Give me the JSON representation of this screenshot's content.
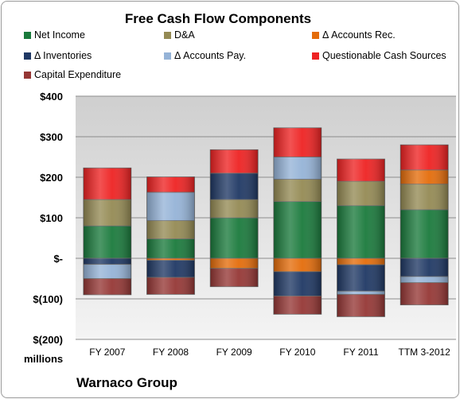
{
  "chart_data": {
    "type": "bar",
    "stacked": true,
    "title": "Free Cash Flow Components",
    "units_label": "millions",
    "footer": "Warnaco Group",
    "categories": [
      "FY 2007",
      "FY 2008",
      "FY 2009",
      "FY 2010",
      "FY 2011",
      "TTM 3-2012"
    ],
    "ylim": [
      -200,
      400
    ],
    "yticks": [
      400,
      300,
      200,
      100,
      0,
      -100,
      -200
    ],
    "ytick_labels": [
      "$400",
      "$300",
      "$200",
      "$100",
      "$-",
      "$(100)",
      "$(200)"
    ],
    "grid": true,
    "legend_position": "top",
    "series": [
      {
        "name": "Net Income",
        "color": "#1a7a3c",
        "values": [
          80,
          48,
          100,
          140,
          130,
          120
        ]
      },
      {
        "name": "D&A",
        "color": "#948a54",
        "values": [
          65,
          45,
          45,
          55,
          60,
          63
        ]
      },
      {
        "name": "Δ Accounts Rec.",
        "color": "#e46c0a",
        "values": [
          0,
          -5,
          -25,
          -33,
          -16,
          35
        ]
      },
      {
        "name": "Δ Inventories",
        "color": "#1f3864",
        "values": [
          -15,
          -42,
          65,
          -60,
          -65,
          -45
        ]
      },
      {
        "name": "Δ Accounts Pay.",
        "color": "#95b3d7",
        "values": [
          -35,
          70,
          0,
          55,
          -8,
          -15
        ]
      },
      {
        "name": "Questionable Cash Sources",
        "color": "#ee2222",
        "values": [
          78,
          38,
          58,
          72,
          55,
          62
        ]
      },
      {
        "name": "Capital Expenditure",
        "color": "#953735",
        "values": [
          -40,
          -42,
          -45,
          -45,
          -55,
          -55
        ]
      }
    ]
  }
}
